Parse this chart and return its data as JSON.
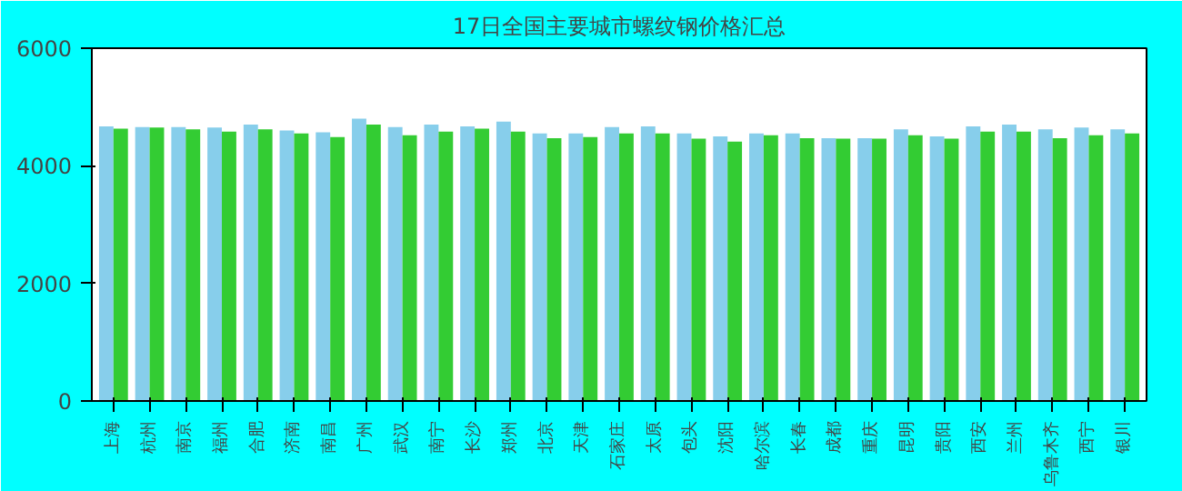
{
  "chart_data": {
    "type": "bar",
    "title": "17日全国主要城市螺纹钢价格汇总",
    "categories": [
      "上海",
      "杭州",
      "南京",
      "福州",
      "合肥",
      "济南",
      "南昌",
      "广州",
      "武汉",
      "南宁",
      "长沙",
      "郑州",
      "北京",
      "天津",
      "石家庄",
      "太原",
      "包头",
      "沈阳",
      "哈尔滨",
      "长春",
      "成都",
      "重庆",
      "昆明",
      "贵阳",
      "西安",
      "兰州",
      "乌鲁木齐",
      "西宁",
      "银川"
    ],
    "series": [
      {
        "color": "#87ceeb",
        "values": [
          4670,
          4660,
          4660,
          4650,
          4700,
          4600,
          4570,
          4800,
          4660,
          4700,
          4670,
          4750,
          4550,
          4550,
          4660,
          4670,
          4550,
          4500,
          4550,
          4550,
          4470,
          4470,
          4620,
          4500,
          4670,
          4700,
          4620,
          4650,
          4620
        ]
      },
      {
        "color": "#33cc33",
        "values": [
          4630,
          4650,
          4620,
          4580,
          4620,
          4550,
          4490,
          4700,
          4520,
          4580,
          4630,
          4580,
          4470,
          4490,
          4550,
          4550,
          4460,
          4410,
          4520,
          4470,
          4460,
          4460,
          4520,
          4460,
          4580,
          4580,
          4470,
          4520,
          4550
        ]
      }
    ],
    "ylim": [
      0,
      6000
    ],
    "yticks": [
      0,
      2000,
      4000,
      6000
    ],
    "grid": false
  }
}
